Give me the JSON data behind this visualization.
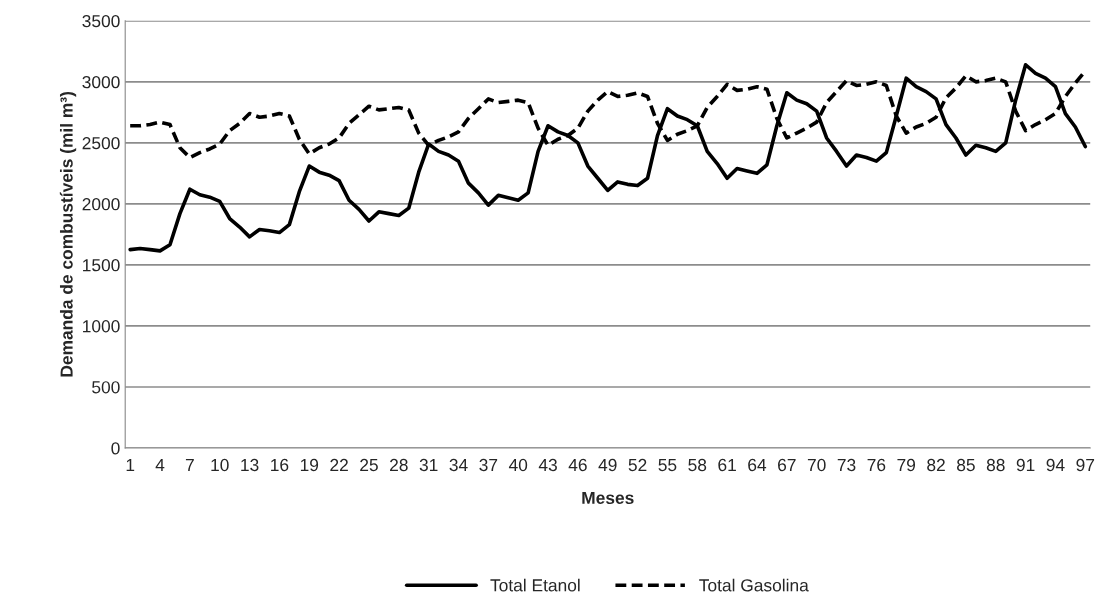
{
  "chart_data": {
    "type": "line",
    "xlabel": "Meses",
    "ylabel": "Demanda de combustíveis (mil m³)",
    "categories": [
      "1",
      null,
      null,
      "4",
      null,
      null,
      "7",
      null,
      null,
      "10",
      null,
      null,
      "13",
      null,
      null,
      "16",
      null,
      null,
      "19",
      null,
      null,
      "22",
      null,
      null,
      "25",
      null,
      null,
      "28",
      null,
      null,
      "31",
      null,
      null,
      "34",
      null,
      null,
      "37",
      null,
      null,
      "40",
      null,
      null,
      "43",
      null,
      null,
      "46",
      null,
      null,
      "49",
      null,
      null,
      "52",
      null,
      null,
      "55",
      null,
      null,
      "58",
      null,
      null,
      "61",
      null,
      null,
      "64",
      null,
      null,
      "67",
      null,
      null,
      "70",
      null,
      null,
      "73",
      null,
      null,
      "76",
      null,
      null,
      "79",
      null,
      null,
      "82",
      null,
      null,
      "85",
      null,
      null,
      "88",
      null,
      null,
      "91",
      null,
      null,
      "94",
      null,
      null,
      "97"
    ],
    "series": [
      {
        "name": "Total Etanol",
        "color": "#000000",
        "line_style": "solid",
        "values": [
          1625,
          1635,
          1625,
          1615,
          1665,
          1920,
          2120,
          2075,
          2055,
          2020,
          1880,
          1810,
          1730,
          1790,
          1780,
          1765,
          1830,
          2100,
          2310,
          2260,
          2235,
          2190,
          2030,
          1955,
          1860,
          1935,
          1920,
          1905,
          1965,
          2260,
          2490,
          2430,
          2400,
          2350,
          2170,
          2090,
          1990,
          2070,
          2050,
          2030,
          2090,
          2430,
          2640,
          2590,
          2560,
          2500,
          2310,
          2210,
          2110,
          2180,
          2160,
          2150,
          2210,
          2560,
          2780,
          2720,
          2690,
          2640,
          2430,
          2330,
          2210,
          2290,
          2270,
          2250,
          2320,
          2640,
          2910,
          2850,
          2820,
          2760,
          2540,
          2430,
          2310,
          2400,
          2380,
          2350,
          2420,
          2720,
          3030,
          2960,
          2920,
          2860,
          2650,
          2540,
          2400,
          2480,
          2460,
          2430,
          2500,
          2850,
          3140,
          3070,
          3030,
          2960,
          2740,
          2630,
          2470
        ]
      },
      {
        "name": "Total Gasolina",
        "color": "#000000",
        "line_style": "dashed",
        "values": [
          2640,
          2640,
          2650,
          2670,
          2650,
          2460,
          2380,
          2420,
          2450,
          2490,
          2600,
          2660,
          2740,
          2710,
          2720,
          2740,
          2720,
          2530,
          2410,
          2460,
          2490,
          2540,
          2660,
          2730,
          2800,
          2770,
          2780,
          2790,
          2770,
          2580,
          2480,
          2520,
          2550,
          2590,
          2700,
          2780,
          2860,
          2830,
          2840,
          2850,
          2830,
          2620,
          2480,
          2530,
          2560,
          2620,
          2760,
          2850,
          2920,
          2880,
          2890,
          2910,
          2880,
          2660,
          2520,
          2570,
          2600,
          2640,
          2790,
          2880,
          2980,
          2930,
          2940,
          2960,
          2940,
          2700,
          2540,
          2580,
          2620,
          2670,
          2830,
          2920,
          3010,
          2970,
          2980,
          3000,
          2970,
          2720,
          2580,
          2630,
          2660,
          2710,
          2870,
          2950,
          3050,
          3000,
          3010,
          3030,
          3000,
          2760,
          2600,
          2650,
          2690,
          2740,
          2880,
          2990,
          3090
        ]
      }
    ],
    "ylim": [
      0,
      3500
    ],
    "yticks": [
      0,
      500,
      1000,
      1500,
      2000,
      2500,
      3000,
      3500
    ],
    "grid": "y",
    "legend": "bottom"
  }
}
